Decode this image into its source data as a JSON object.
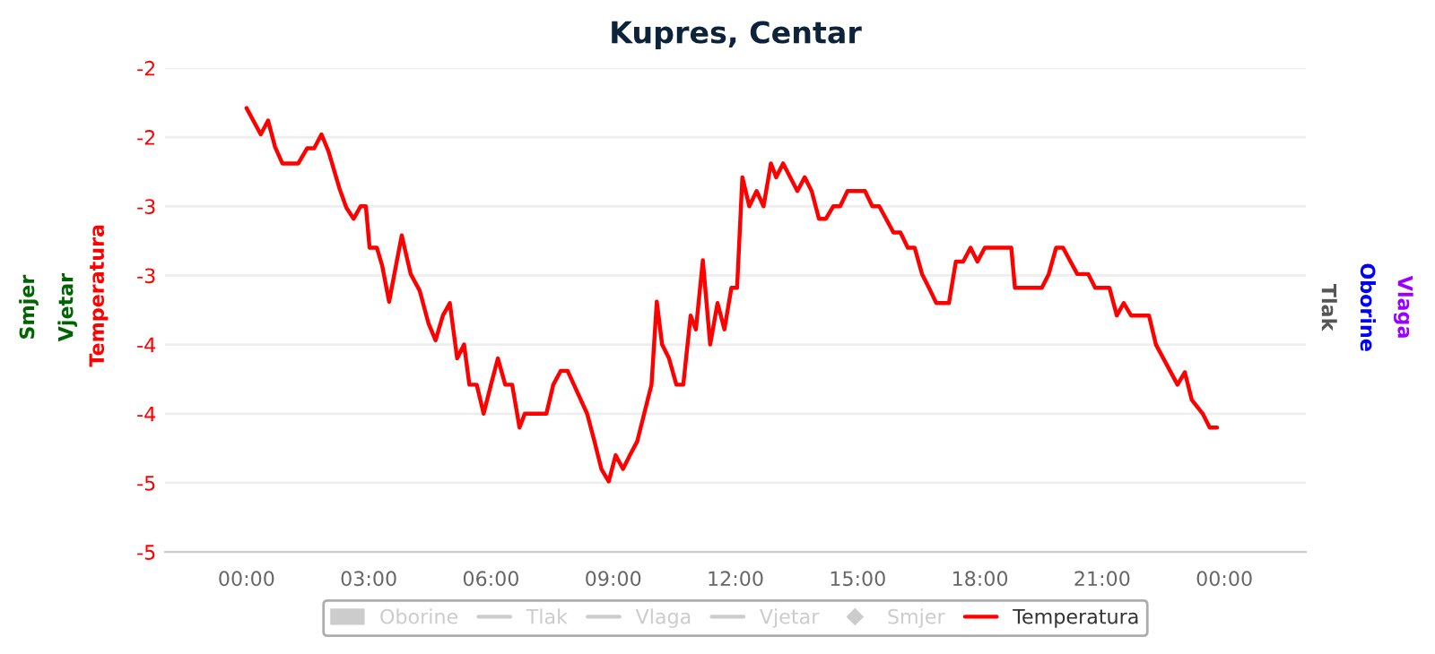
{
  "chart_data": {
    "type": "line",
    "title": "Kupres, Centar",
    "ylabel": "Temperatura",
    "annotations": [
      "Smjer",
      "Vjetar",
      "Tlak",
      "Oborine",
      "Vlaga"
    ],
    "xlim": [
      -2,
      26
    ],
    "xticks": [
      {
        "value": 0,
        "label": "00:00"
      },
      {
        "value": 3,
        "label": "03:00"
      },
      {
        "value": 6,
        "label": "06:00"
      },
      {
        "value": 9,
        "label": "09:00"
      },
      {
        "value": 12,
        "label": "12:00"
      },
      {
        "value": 15,
        "label": "15:00"
      },
      {
        "value": 18,
        "label": "18:00"
      },
      {
        "value": 21,
        "label": "21:00"
      },
      {
        "value": 24,
        "label": "00:00"
      }
    ],
    "ylim": [
      -5,
      -1.5
    ],
    "yticks": [
      {
        "value": -1.5,
        "label": "-2"
      },
      {
        "value": -2,
        "label": "-2"
      },
      {
        "value": -2.5,
        "label": "-3"
      },
      {
        "value": -3,
        "label": "-3"
      },
      {
        "value": -3.5,
        "label": "-4"
      },
      {
        "value": -4,
        "label": "-4"
      },
      {
        "value": -4.5,
        "label": "-5"
      },
      {
        "value": -5,
        "label": "-5"
      }
    ],
    "grid": "y",
    "legend": "bottom",
    "series": [
      {
        "name": "Oborine",
        "type": "bar",
        "color": "#cccccc"
      },
      {
        "name": "Tlak",
        "type": "line",
        "color": "#cccccc"
      },
      {
        "name": "Vlaga",
        "type": "line",
        "color": "#cccccc"
      },
      {
        "name": "Vjetar",
        "type": "line",
        "color": "#cccccc"
      },
      {
        "name": "Smjer",
        "type": "scatter",
        "marker": "diamond",
        "color": "#cccccc"
      },
      {
        "name": "Temperatura",
        "color": "#ff0000",
        "x": [
          0,
          0.35,
          0.53,
          0.7,
          0.88,
          1.27,
          1.49,
          1.66,
          1.84,
          2.01,
          2.28,
          2.45,
          2.63,
          2.8,
          2.93,
          3.02,
          3.2,
          3.33,
          3.5,
          3.81,
          4.03,
          4.25,
          4.47,
          4.64,
          4.82,
          4.99,
          5.17,
          5.34,
          5.47,
          5.65,
          5.82,
          6.0,
          6.17,
          6.35,
          6.52,
          6.7,
          6.83,
          7.36,
          7.53,
          7.71,
          7.88,
          8.36,
          8.54,
          8.71,
          8.89,
          9.06,
          9.24,
          9.41,
          9.59,
          9.76,
          9.94,
          10.07,
          10.2,
          10.37,
          10.55,
          10.72,
          10.9,
          11.03,
          11.2,
          11.38,
          11.56,
          11.73,
          11.9,
          12.04,
          12.17,
          12.34,
          12.52,
          12.69,
          12.87,
          13.0,
          13.17,
          13.52,
          13.7,
          13.87,
          14.05,
          14.22,
          14.4,
          14.57,
          14.75,
          15.18,
          15.36,
          15.53,
          15.88,
          16.05,
          16.23,
          16.4,
          16.58,
          16.75,
          16.93,
          17.24,
          17.41,
          17.59,
          17.77,
          17.94,
          18.12,
          18.77,
          18.86,
          19.52,
          19.69,
          19.87,
          20.04,
          20.39,
          20.66,
          20.83,
          21.18,
          21.36,
          21.53,
          21.71,
          22.15,
          22.32,
          22.85,
          23.03,
          23.2,
          23.47,
          23.64,
          23.82
        ],
        "values": [
          -1.79,
          -1.98,
          -1.88,
          -2.07,
          -2.19,
          -2.19,
          -2.08,
          -2.08,
          -1.98,
          -2.1,
          -2.37,
          -2.51,
          -2.59,
          -2.5,
          -2.5,
          -2.8,
          -2.8,
          -2.93,
          -3.19,
          -2.71,
          -2.99,
          -3.11,
          -3.35,
          -3.47,
          -3.29,
          -3.2,
          -3.6,
          -3.5,
          -3.79,
          -3.79,
          -4.0,
          -3.79,
          -3.6,
          -3.79,
          -3.79,
          -4.1,
          -4.0,
          -4.0,
          -3.79,
          -3.69,
          -3.69,
          -4.0,
          -4.2,
          -4.4,
          -4.49,
          -4.3,
          -4.4,
          -4.3,
          -4.2,
          -4.0,
          -3.79,
          -3.19,
          -3.5,
          -3.6,
          -3.79,
          -3.79,
          -3.29,
          -3.39,
          -2.89,
          -3.5,
          -3.2,
          -3.39,
          -3.09,
          -3.09,
          -2.29,
          -2.5,
          -2.39,
          -2.5,
          -2.19,
          -2.29,
          -2.19,
          -2.39,
          -2.29,
          -2.39,
          -2.59,
          -2.59,
          -2.5,
          -2.5,
          -2.39,
          -2.39,
          -2.5,
          -2.5,
          -2.69,
          -2.69,
          -2.8,
          -2.8,
          -2.99,
          -3.09,
          -3.2,
          -3.2,
          -2.9,
          -2.9,
          -2.8,
          -2.9,
          -2.8,
          -2.8,
          -3.09,
          -3.09,
          -2.99,
          -2.8,
          -2.8,
          -2.99,
          -2.99,
          -3.09,
          -3.09,
          -3.29,
          -3.2,
          -3.29,
          -3.29,
          -3.5,
          -3.79,
          -3.7,
          -3.9,
          -4.0,
          -4.1,
          -4.1
        ]
      }
    ]
  }
}
